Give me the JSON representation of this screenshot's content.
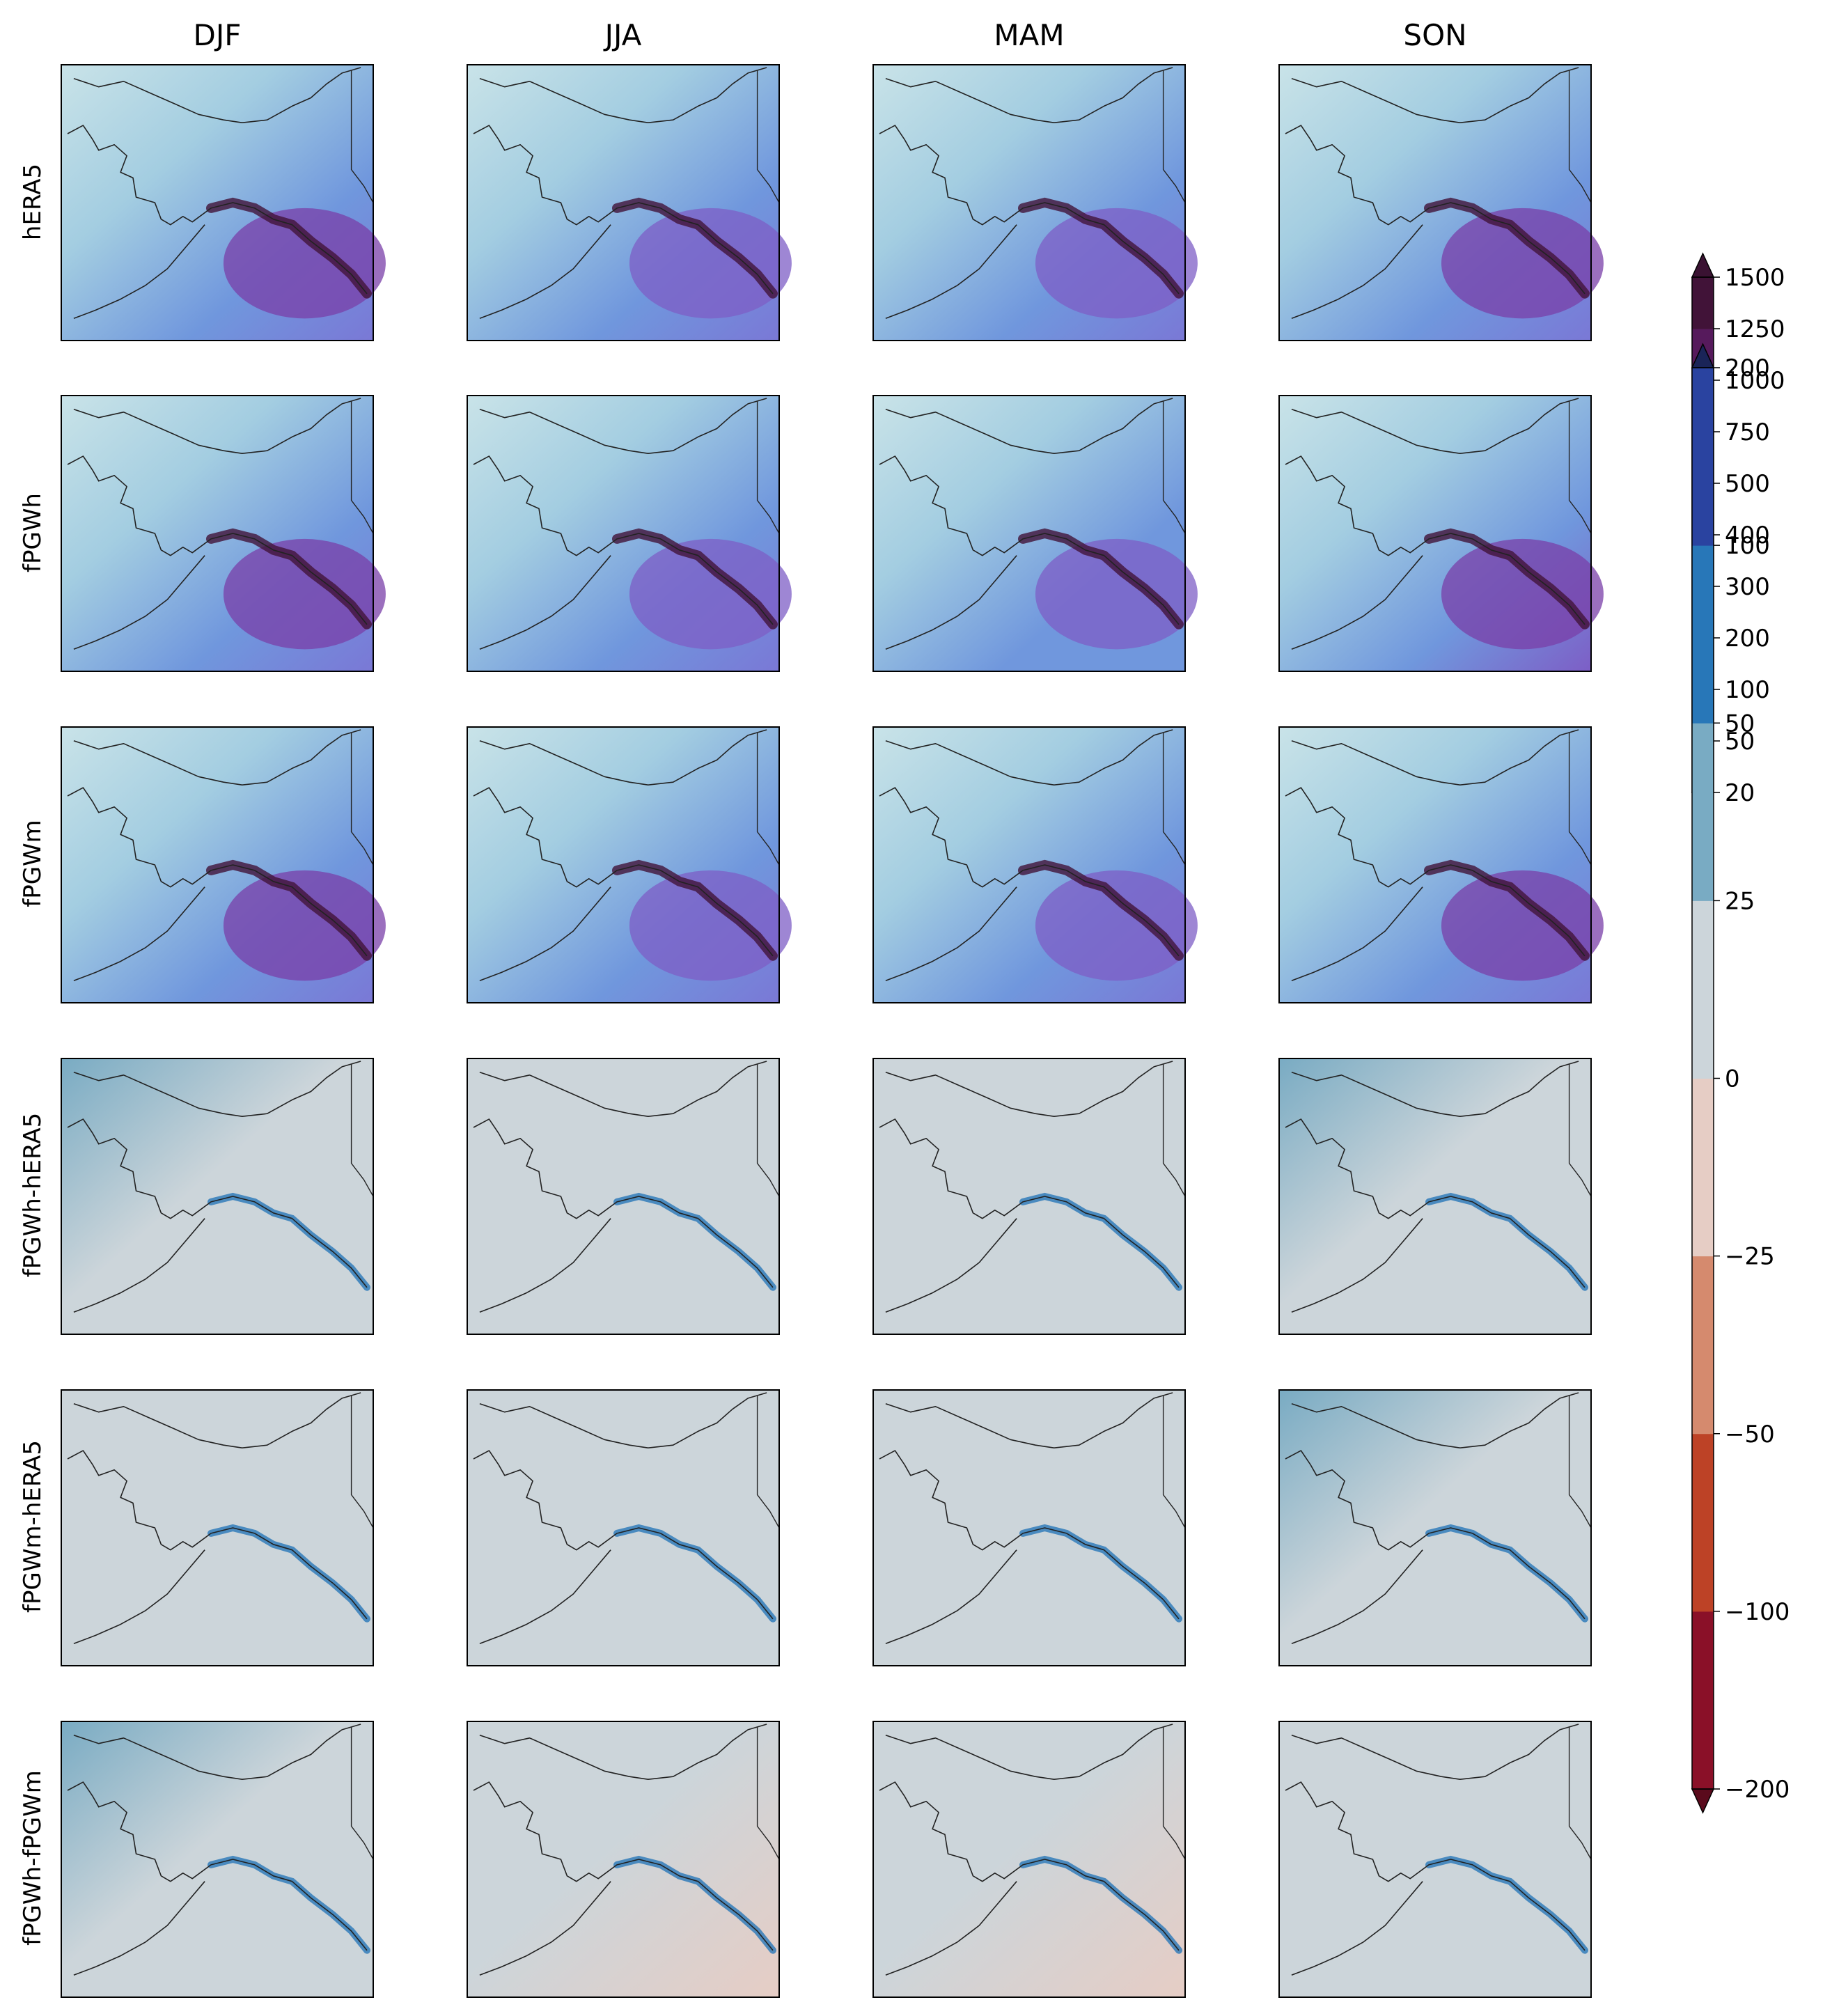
{
  "chart_data": {
    "type": "heatmap",
    "columns": [
      "DJF",
      "JJA",
      "MAM",
      "SON"
    ],
    "rows": [
      "hERA5",
      "fPGWh",
      "fPGWm",
      "fPGWh-hERA5",
      "fPGWm-hERA5",
      "fPGWh-fPGWm"
    ],
    "colorbars": [
      {
        "applies_to_rows": [
          "hERA5",
          "fPGWh",
          "fPGWm"
        ],
        "levels": [
          20,
          50,
          100,
          200,
          300,
          400,
          500,
          750,
          1000,
          1250,
          1500
        ],
        "tick_labels": [
          "20",
          "50",
          "100",
          "200",
          "300",
          "400",
          "500",
          "750",
          "1000",
          "1250",
          "1500"
        ],
        "colors": [
          "#c9e3e8",
          "#a3cde1",
          "#82b6e2",
          "#7097dd",
          "#7a78d6",
          "#7d5ec6",
          "#7a3fa8",
          "#6b2784",
          "#561a5c",
          "#411338"
        ],
        "under_color": "#dbeef1",
        "over_color": "#3a1232",
        "extend": "both"
      },
      {
        "applies_to_rows": [
          "fPGWh-hERA5",
          "fPGWm-hERA5",
          "fPGWh-fPGWm"
        ],
        "levels": [
          -200,
          -100,
          -50,
          -25,
          0,
          25,
          50,
          100,
          200
        ],
        "tick_labels": [
          "−200",
          "−100",
          "−50",
          "−25",
          "0",
          "25",
          "50",
          "100",
          "200"
        ],
        "colors": [
          "#8a1028",
          "#bd4226",
          "#d58a6e",
          "#e6cdc5",
          "#ccd5da",
          "#79abc3",
          "#2877b8",
          "#2a43a0"
        ],
        "under_color": "#5a0a1c",
        "over_color": "#1a2458",
        "extend": "both"
      }
    ],
    "panel_tints": {
      "hERA5": {
        "DJF": 0.55,
        "JJA": 0.4,
        "MAM": 0.38,
        "SON": 0.6
      },
      "fPGWh": {
        "DJF": 0.57,
        "JJA": 0.42,
        "MAM": 0.37,
        "SON": 0.64
      },
      "fPGWm": {
        "DJF": 0.58,
        "JJA": 0.45,
        "MAM": 0.4,
        "SON": 0.62
      },
      "fPGWh-hERA5": {
        "DJF": 0.62,
        "JJA": 0.52,
        "MAM": 0.5,
        "SON": 0.62
      },
      "fPGWm-hERA5": {
        "DJF": 0.53,
        "JJA": 0.52,
        "MAM": 0.51,
        "SON": 0.56
      },
      "fPGWh-fPGWm": {
        "DJF": 0.58,
        "JJA": 0.46,
        "MAM": 0.47,
        "SON": 0.55
      }
    },
    "colors": {
      "coastline": "#222222",
      "frame": "#000000"
    }
  }
}
